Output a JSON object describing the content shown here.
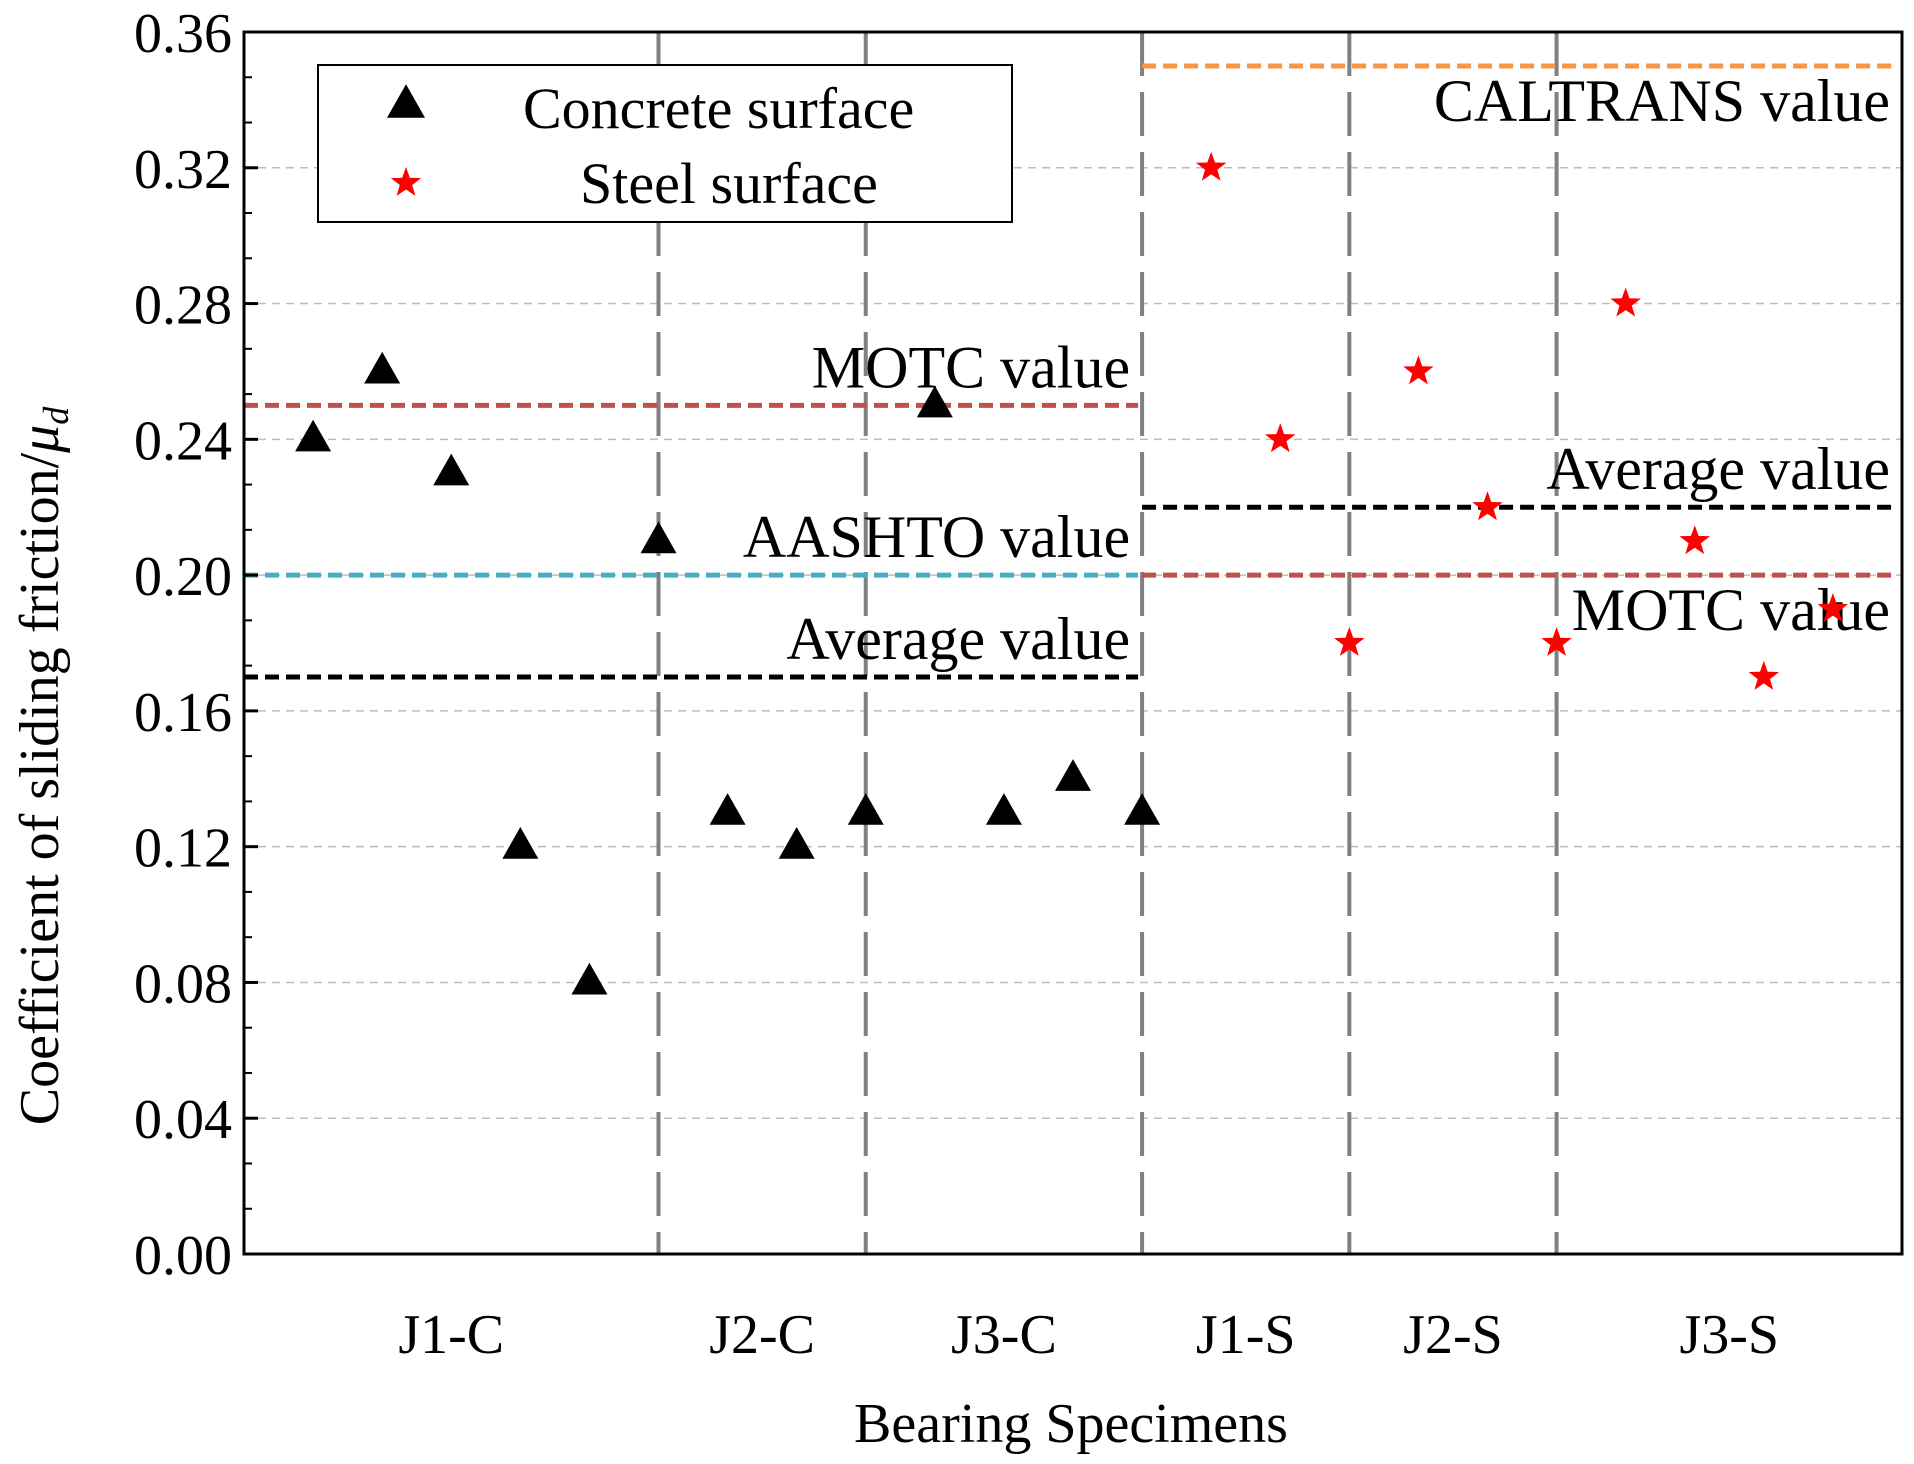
{
  "chart_data": {
    "type": "scatter",
    "title": "",
    "xlabel": "Bearing Specimens",
    "ylabel_text": "Coefficient of sliding friction/",
    "ylabel_symbol": "μ",
    "ylabel_subscript": "d",
    "ylim": [
      0,
      0.36
    ],
    "yticks": [
      "0.00",
      "0.04",
      "0.08",
      "0.12",
      "0.16",
      "0.20",
      "0.24",
      "0.28",
      "0.32",
      "0.36"
    ],
    "grid": true,
    "legend_position": "top-left",
    "x_range": [
      0,
      24
    ],
    "groups": [
      {
        "label": "J1-C",
        "x_range": [
          0,
          6
        ]
      },
      {
        "label": "J2-C",
        "x_range": [
          6,
          9
        ]
      },
      {
        "label": "J3-C",
        "x_range": [
          9,
          13
        ]
      },
      {
        "label": "J1-S",
        "x_range": [
          13,
          16
        ]
      },
      {
        "label": "J2-S",
        "x_range": [
          16,
          19
        ]
      },
      {
        "label": "J3-S",
        "x_range": [
          19,
          24
        ]
      }
    ],
    "series": [
      {
        "name": "Concrete surface",
        "marker": "triangle",
        "color": "#000000",
        "points": [
          {
            "x": 1,
            "y": 0.24
          },
          {
            "x": 2,
            "y": 0.26
          },
          {
            "x": 3,
            "y": 0.23
          },
          {
            "x": 4,
            "y": 0.12
          },
          {
            "x": 5,
            "y": 0.08
          },
          {
            "x": 6,
            "y": 0.21
          },
          {
            "x": 7,
            "y": 0.13
          },
          {
            "x": 8,
            "y": 0.12
          },
          {
            "x": 9,
            "y": 0.13
          },
          {
            "x": 10,
            "y": 0.25
          },
          {
            "x": 11,
            "y": 0.13
          },
          {
            "x": 12,
            "y": 0.14
          },
          {
            "x": 13,
            "y": 0.13
          }
        ]
      },
      {
        "name": "Steel surface",
        "marker": "star",
        "color": "#ff0000",
        "points": [
          {
            "x": 14,
            "y": 0.32
          },
          {
            "x": 15,
            "y": 0.24
          },
          {
            "x": 16,
            "y": 0.18
          },
          {
            "x": 17,
            "y": 0.26
          },
          {
            "x": 18,
            "y": 0.22
          },
          {
            "x": 19,
            "y": 0.18
          },
          {
            "x": 20,
            "y": 0.28
          },
          {
            "x": 21,
            "y": 0.21
          },
          {
            "x": 22,
            "y": 0.17
          },
          {
            "x": 23,
            "y": 0.19
          }
        ]
      }
    ],
    "reference_lines": [
      {
        "label": "MOTC value",
        "y": 0.25,
        "x_range": [
          0,
          13
        ],
        "color": "#c0504d"
      },
      {
        "label": "AASHTO value",
        "y": 0.2,
        "x_range": [
          0,
          13
        ],
        "color": "#4bacc6"
      },
      {
        "label": "Average value",
        "y": 0.17,
        "x_range": [
          0,
          13
        ],
        "color": "#000000"
      },
      {
        "label": "CALTRANS value",
        "y": 0.35,
        "x_range": [
          13,
          24
        ],
        "color": "#f79646"
      },
      {
        "label": "Average value",
        "y": 0.22,
        "x_range": [
          13,
          24
        ],
        "color": "#000000"
      },
      {
        "label": "MOTC value",
        "y": 0.2,
        "x_range": [
          13,
          24
        ],
        "color": "#c0504d"
      }
    ]
  }
}
